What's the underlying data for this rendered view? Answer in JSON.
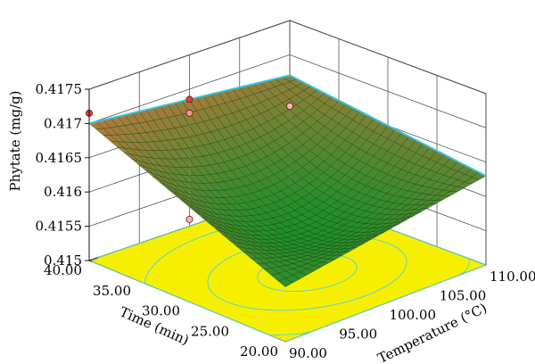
{
  "chart_data": {
    "type": "surface3d",
    "title": "",
    "zlabel": "Phytate (mg/g)",
    "xlabel": "Temperature (°C)",
    "ylabel": "Time (min)",
    "x_ticks": [
      "90.00",
      "95.00",
      "100.00",
      "105.00",
      "110.00"
    ],
    "y_ticks": [
      "20.00",
      "25.00",
      "30.00",
      "35.00",
      "40.00"
    ],
    "z_ticks": [
      "0.415",
      "0.4155",
      "0.416",
      "0.4165",
      "0.417",
      "0.4175"
    ],
    "xlim": [
      90,
      110
    ],
    "ylim": [
      20,
      40
    ],
    "zlim": [
      0.415,
      0.4175
    ],
    "surface_corners": [
      {
        "temperature": 90,
        "time": 20,
        "phytate": 0.4158
      },
      {
        "temperature": 110,
        "time": 20,
        "phytate": 0.4163
      },
      {
        "temperature": 90,
        "time": 40,
        "phytate": 0.417
      },
      {
        "temperature": 110,
        "time": 40,
        "phytate": 0.4167
      }
    ],
    "surface_minimum": {
      "temperature": 100,
      "time": 28,
      "phytate": 0.4157
    },
    "design_points": [
      {
        "temperature": 90,
        "time": 40,
        "phytate": 0.41715,
        "color": "#e0403a"
      },
      {
        "temperature": 100,
        "time": 40,
        "phytate": 0.41685,
        "color": "#e0403a"
      },
      {
        "temperature": 100,
        "time": 40,
        "phytate": 0.41665,
        "color": "#e89a9a"
      },
      {
        "temperature": 110,
        "time": 40,
        "phytate": 0.41625,
        "color": "#f0b8b8"
      },
      {
        "temperature": 100,
        "time": 40,
        "phytate": 0.4151,
        "color": "#f0b8b8"
      }
    ],
    "colors": {
      "floor": "#f6f000",
      "contour": "#5fd4c0",
      "surface_low": "#1f8f2a",
      "surface_high": "#b07a3c",
      "surface_edge": "#38c0e0"
    },
    "grid": true
  }
}
